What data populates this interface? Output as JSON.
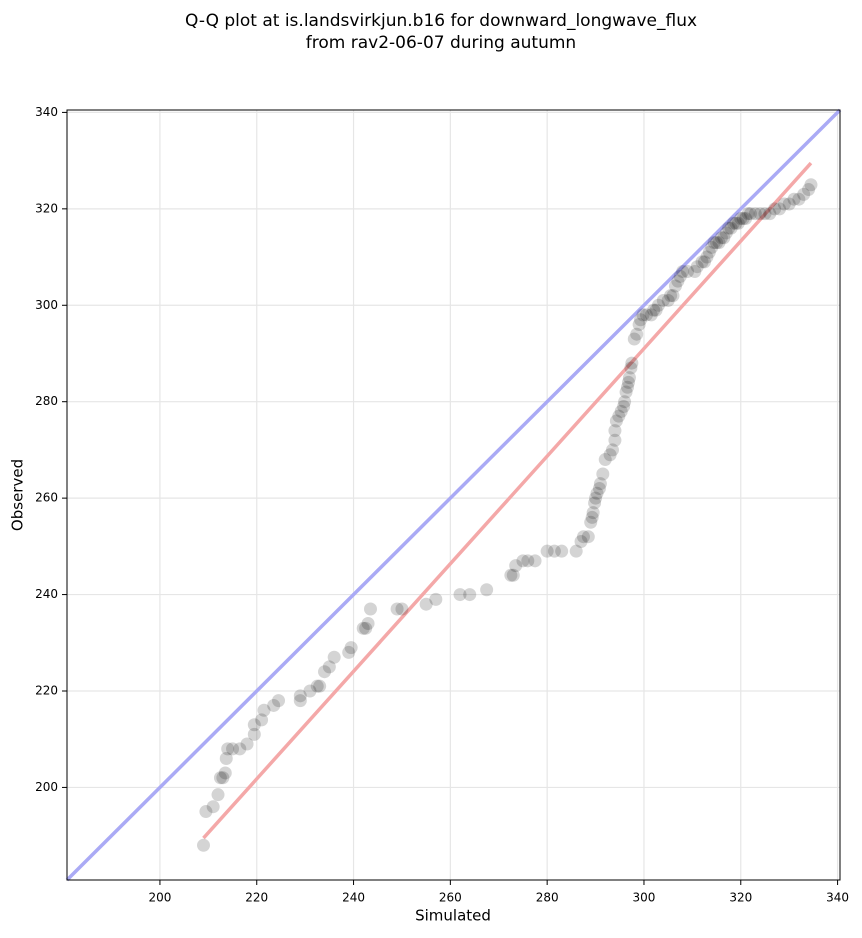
{
  "chart_data": {
    "type": "scatter",
    "title": [
      "Q-Q plot at is.landsvirkjun.b16 for downward_longwave_flux",
      "from rav2-06-07 during autumn"
    ],
    "xlabel": "Simulated",
    "ylabel": "Observed",
    "xlim": [
      180.8,
      340.5
    ],
    "ylim": [
      180.8,
      340.5
    ],
    "xticks": [
      200,
      220,
      240,
      260,
      280,
      300,
      320,
      340
    ],
    "yticks": [
      200,
      220,
      240,
      260,
      280,
      300,
      320,
      340
    ],
    "grid": true,
    "color": "#000000",
    "alpha": 0.17,
    "x": [
      209,
      209.5,
      211,
      212,
      212.5,
      213,
      213.5,
      213.7,
      214,
      215,
      216.5,
      218,
      219.5,
      219.5,
      221,
      221.5,
      223.5,
      224.5,
      229,
      229,
      231,
      232.5,
      233,
      234,
      235,
      236,
      239,
      239.5,
      242,
      242.5,
      243,
      243.5,
      249,
      250,
      255,
      257,
      262,
      264,
      267.5,
      272.5,
      273.5,
      273,
      275,
      276,
      277.5,
      280,
      281.5,
      283,
      286,
      287,
      287.5,
      288.5,
      289,
      289.3,
      289.5,
      289.8,
      290,
      290.3,
      290.8,
      291,
      291.5,
      292,
      293,
      293.5,
      294,
      294,
      294.3,
      294.8,
      295.3,
      295.8,
      296,
      296.3,
      296.6,
      296.8,
      297,
      297.3,
      297.5,
      298,
      298.5,
      299,
      299.3,
      299.8,
      300.5,
      301.5,
      302,
      302.5,
      303,
      304,
      305,
      305.5,
      306,
      306.5,
      307,
      307.5,
      308,
      309,
      310.5,
      311,
      312,
      312.5,
      313,
      313.5,
      314,
      314.5,
      315,
      315.5,
      316,
      316.5,
      317,
      317.5,
      318,
      318.5,
      319,
      319.5,
      320,
      320.5,
      321,
      321.5,
      322,
      323,
      324,
      325,
      326,
      327,
      328,
      329,
      330,
      331,
      332,
      333,
      334,
      334.5
    ],
    "values": [
      188,
      195,
      196,
      198.5,
      202,
      202,
      203,
      206,
      208,
      208,
      208,
      209,
      211,
      213,
      214,
      216,
      217,
      218,
      218,
      219,
      220,
      221,
      221,
      224,
      225,
      227,
      228,
      229,
      233,
      233,
      234,
      237,
      237,
      237,
      238,
      239,
      240,
      240,
      241,
      244,
      246,
      244,
      247,
      247,
      247,
      249,
      249,
      249,
      249,
      251,
      252,
      252,
      255,
      256,
      257,
      259,
      260,
      261,
      262,
      263,
      265,
      268,
      269,
      270,
      272,
      274,
      276,
      277,
      278,
      279,
      280,
      282,
      283,
      284,
      285,
      287,
      288,
      293,
      294,
      296,
      297,
      298,
      298,
      298,
      299,
      299,
      300,
      301,
      301,
      302,
      302,
      304,
      305,
      306,
      307,
      307,
      307,
      308,
      309,
      309,
      310,
      311,
      312,
      313,
      313,
      313,
      314,
      314,
      315,
      316,
      316,
      317,
      317,
      317,
      318,
      318,
      318,
      319,
      319,
      319,
      319,
      319,
      319,
      320,
      320,
      321,
      321,
      322,
      322,
      323,
      324,
      325
    ],
    "identity_line": {
      "color": "#aaaaf5",
      "x": [
        180.8,
        340.5
      ],
      "values": [
        180.8,
        340.5
      ]
    },
    "fit_line": {
      "color": "#f4a8a8",
      "x": [
        209,
        334.5
      ],
      "values": [
        189.5,
        329.5
      ]
    }
  }
}
